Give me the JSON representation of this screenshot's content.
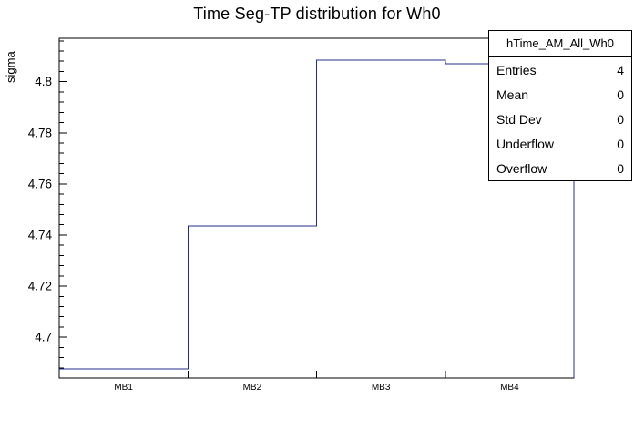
{
  "title": "Time Seg-TP distribution for Wh0",
  "y_axis_label": "sigma",
  "stats": {
    "header": "hTime_AM_All_Wh0",
    "rows": [
      {
        "label": "Entries",
        "value": "4"
      },
      {
        "label": "Mean",
        "value": "0"
      },
      {
        "label": "Std Dev",
        "value": "0"
      },
      {
        "label": "Underflow",
        "value": "0"
      },
      {
        "label": "Overflow",
        "value": "0"
      }
    ]
  },
  "chart_data": {
    "type": "bar",
    "subtype": "step-histogram",
    "title": "Time Seg-TP distribution for Wh0",
    "xlabel": "",
    "ylabel": "sigma",
    "categories": [
      "MB1",
      "MB2",
      "MB3",
      "MB4"
    ],
    "values": [
      4.6875,
      4.7435,
      4.8085,
      4.807
    ],
    "ylim": [
      4.684,
      4.817
    ],
    "y_major_ticks": [
      4.7,
      4.72,
      4.74,
      4.76,
      4.78,
      4.8
    ],
    "y_tick_labels": [
      "4.7",
      "4.72",
      "4.74",
      "4.76",
      "4.78",
      "4.8"
    ],
    "y_minor_step": 0.004,
    "grid": false,
    "legend": "stats-box top-right",
    "line_color": "#232c88",
    "frame_color": "#000000"
  }
}
